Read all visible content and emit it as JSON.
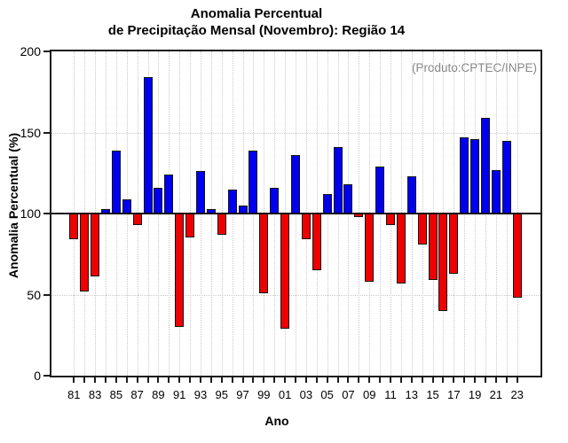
{
  "title": {
    "line1": "Anomalia Percentual",
    "line2": "de Precipitação Mensal (Novembro): Região 14"
  },
  "annotation": "(Produto:CPTEC/INPE)",
  "chart_data": {
    "type": "bar",
    "title": "Anomalia Percentual de Precipitação Mensal (Novembro): Região 14",
    "xlabel": "Ano",
    "ylabel": "Anomalia Percentual (%)",
    "ylim": [
      0,
      200
    ],
    "yticks": [
      0,
      50,
      100,
      150,
      200
    ],
    "baseline": 100,
    "grid": {
      "horizontal_at": [
        50,
        150
      ],
      "vertical": "every-year",
      "style": "dotted"
    },
    "legend": "none",
    "bar_colors": {
      "above_baseline": "#0000ee",
      "below_baseline": "#ee0000"
    },
    "x_tick_label_every": 2,
    "categories": [
      "81",
      "82",
      "83",
      "84",
      "85",
      "86",
      "87",
      "88",
      "89",
      "90",
      "91",
      "92",
      "93",
      "94",
      "95",
      "96",
      "97",
      "98",
      "99",
      "00",
      "01",
      "02",
      "03",
      "04",
      "05",
      "06",
      "07",
      "08",
      "09",
      "10",
      "11",
      "12",
      "13",
      "14",
      "15",
      "16",
      "17",
      "18",
      "19",
      "20",
      "21",
      "22",
      "23"
    ],
    "values": [
      84,
      52,
      61,
      103,
      139,
      109,
      93,
      184,
      116,
      124,
      30,
      85,
      126,
      103,
      87,
      115,
      105,
      139,
      51,
      116,
      29,
      136,
      84,
      65,
      112,
      141,
      118,
      98,
      58,
      129,
      93,
      57,
      123,
      81,
      59,
      40,
      63,
      147,
      146,
      159,
      127,
      145,
      48
    ],
    "annotation": "(Produto:CPTEC/INPE)"
  },
  "colors": {
    "frame": "#1c1c1c",
    "gridline": "#c9c9c9",
    "baseline": "#111111",
    "annotation_text": "#878787"
  }
}
